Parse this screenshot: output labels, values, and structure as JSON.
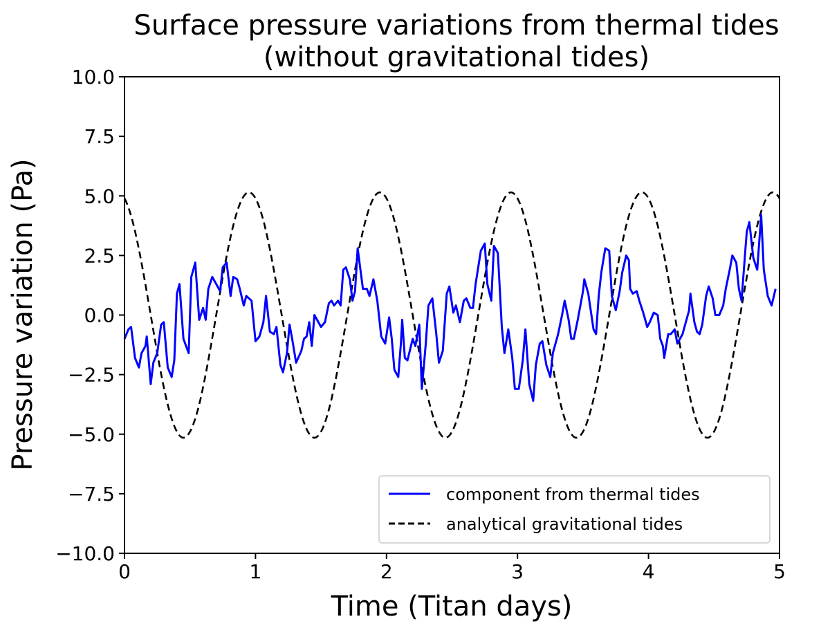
{
  "chart_data": {
    "type": "line",
    "title": [
      "Surface pressure variations from thermal tides",
      "(without gravitational tides)"
    ],
    "xlabel": "Time (Titan days)",
    "ylabel": "Pressure variation (Pa)",
    "xlim": [
      0,
      5
    ],
    "ylim": [
      -10,
      10
    ],
    "xticks": [
      0,
      1,
      2,
      3,
      4,
      5
    ],
    "xtick_labels": [
      "0",
      "1",
      "2",
      "3",
      "4",
      "5"
    ],
    "yticks": [
      10,
      7.5,
      5,
      2.5,
      0,
      -2.5,
      -5,
      -7.5,
      -10
    ],
    "ytick_labels": [
      "10.0",
      "7.5",
      "5.0",
      "2.5",
      "0.0",
      "−2.5",
      "−5.0",
      "−7.5",
      "−10.0"
    ],
    "grid": false,
    "legend_position": "lower-right",
    "series": [
      {
        "name": "component from thermal tides",
        "color": "#0000ff",
        "style": "solid",
        "x": [
          0,
          0.03,
          0.05,
          0.08,
          0.11,
          0.13,
          0.16,
          0.17,
          0.2,
          0.22,
          0.25,
          0.28,
          0.3,
          0.33,
          0.36,
          0.38,
          0.4,
          0.42,
          0.45,
          0.49,
          0.51,
          0.54,
          0.57,
          0.6,
          0.62,
          0.64,
          0.67,
          0.7,
          0.73,
          0.75,
          0.78,
          0.81,
          0.83,
          0.86,
          0.88,
          0.91,
          0.93,
          0.97,
          1.0,
          1.03,
          1.06,
          1.08,
          1.11,
          1.14,
          1.16,
          1.19,
          1.21,
          1.24,
          1.26,
          1.28,
          1.31,
          1.35,
          1.37,
          1.39,
          1.41,
          1.43,
          1.45,
          1.48,
          1.5,
          1.53,
          1.56,
          1.58,
          1.6,
          1.63,
          1.65,
          1.67,
          1.69,
          1.72,
          1.74,
          1.76,
          1.78,
          1.82,
          1.85,
          1.87,
          1.9,
          1.93,
          1.96,
          1.99,
          2.02,
          2.04,
          2.06,
          2.09,
          2.11,
          2.12,
          2.14,
          2.16,
          2.2,
          2.22,
          2.25,
          2.27,
          2.3,
          2.32,
          2.35,
          2.38,
          2.4,
          2.43,
          2.46,
          2.48,
          2.51,
          2.53,
          2.56,
          2.59,
          2.61,
          2.64,
          2.66,
          2.68,
          2.72,
          2.75,
          2.77,
          2.8,
          2.82,
          2.85,
          2.88,
          2.9,
          2.93,
          2.96,
          2.98,
          3.01,
          3.04,
          3.06,
          3.09,
          3.12,
          3.14,
          3.17,
          3.19,
          3.22,
          3.25,
          3.27,
          3.31,
          3.34,
          3.36,
          3.39,
          3.41,
          3.43,
          3.46,
          3.5,
          3.51,
          3.54,
          3.58,
          3.6,
          3.62,
          3.64,
          3.67,
          3.7,
          3.72,
          3.75,
          3.78,
          3.8,
          3.83,
          3.85,
          3.86,
          3.88,
          3.91,
          3.93,
          3.96,
          3.99,
          4.01,
          4.04,
          4.07,
          4.09,
          4.11,
          4.12,
          4.15,
          4.17,
          4.2,
          4.22,
          4.26,
          4.29,
          4.31,
          4.32,
          4.35,
          4.37,
          4.39,
          4.41,
          4.44,
          4.46,
          4.49,
          4.51,
          4.54,
          4.57,
          4.59,
          4.62,
          4.64,
          4.67,
          4.69,
          4.71,
          4.74,
          4.75,
          4.77,
          4.8,
          4.83,
          4.86,
          4.88,
          4.91,
          4.94,
          4.97
        ],
        "y": [
          -1.0,
          -0.6,
          -0.5,
          -1.8,
          -2.2,
          -1.6,
          -1.3,
          -0.9,
          -2.9,
          -2.0,
          -1.6,
          -0.4,
          -0.3,
          -2.2,
          -2.6,
          -1.9,
          0.9,
          1.3,
          -1.0,
          -1.6,
          1.6,
          2.2,
          -0.2,
          0.3,
          -0.2,
          1.1,
          1.6,
          1.3,
          1.0,
          2.0,
          2.2,
          0.8,
          1.6,
          1.5,
          1.1,
          0.4,
          0.8,
          0.6,
          -1.1,
          -0.9,
          -0.3,
          0.8,
          -0.7,
          -0.8,
          -0.5,
          -2.1,
          -2.4,
          -1.6,
          -0.4,
          -1.0,
          -2.0,
          -1.5,
          -1.0,
          -0.9,
          -0.3,
          -1.3,
          0.0,
          -0.3,
          -0.5,
          -0.3,
          0.5,
          0.6,
          0.4,
          0.6,
          0.4,
          1.9,
          2.0,
          1.5,
          0.6,
          1.0,
          2.8,
          1.1,
          1.1,
          0.8,
          1.5,
          0.6,
          -0.9,
          -1.2,
          -0.1,
          -1.0,
          -2.3,
          -2.6,
          -1.2,
          -0.2,
          -1.8,
          -1.9,
          -1.0,
          -1.3,
          -0.4,
          -3.1,
          -1.2,
          0.4,
          0.7,
          -0.8,
          -2.0,
          -1.5,
          0.9,
          1.2,
          0.1,
          0.4,
          -0.3,
          0.6,
          0.7,
          0.3,
          0.3,
          1.3,
          2.7,
          3.0,
          1.3,
          0.6,
          2.9,
          2.6,
          -0.5,
          -1.6,
          -0.6,
          -1.8,
          -3.1,
          -3.1,
          -1.9,
          -0.6,
          -2.9,
          -3.6,
          -2.1,
          -1.2,
          -1.1,
          -2.1,
          -2.6,
          -1.6,
          -0.8,
          0.0,
          0.6,
          -0.2,
          -1.0,
          -1.0,
          -0.2,
          1.0,
          1.5,
          0.9,
          -0.6,
          -0.8,
          0.8,
          1.8,
          2.8,
          2.7,
          0.8,
          0.2,
          1.0,
          1.8,
          2.5,
          2.3,
          1.1,
          0.9,
          1.0,
          0.6,
          0.1,
          -0.5,
          -0.3,
          0.1,
          0.0,
          -1.0,
          -1.3,
          -1.8,
          -0.8,
          -0.8,
          -0.6,
          -1.2,
          -0.8,
          -0.2,
          0.2,
          0.9,
          -0.3,
          -0.7,
          -0.8,
          -0.4,
          0.8,
          1.2,
          0.7,
          0.0,
          0.0,
          0.4,
          1.1,
          1.9,
          2.5,
          2.2,
          1.1,
          0.6,
          2.8,
          3.5,
          3.9,
          2.4,
          1.9,
          4.2,
          1.9,
          0.8,
          0.4,
          1.1
        ]
      },
      {
        "name": "analytical gravitational tides",
        "color": "#000000",
        "style": "dashed",
        "model": {
          "function": "cosine",
          "amplitude": 5.15,
          "period": 1,
          "peak_at": 0.95,
          "x_range": [
            0,
            5
          ]
        }
      }
    ]
  }
}
